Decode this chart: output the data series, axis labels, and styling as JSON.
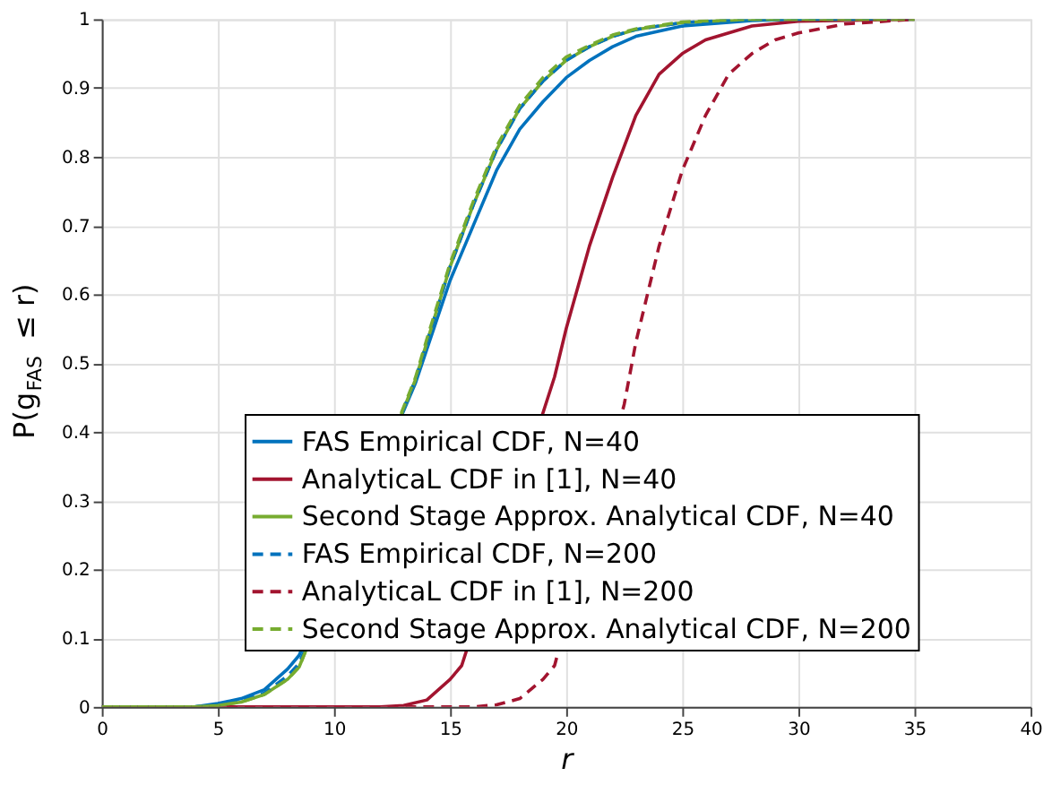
{
  "chart_data": {
    "type": "line",
    "xlabel": "r",
    "ylabel": "P(g$_{FAS}$ ≤ r)",
    "xlim": [
      0,
      40
    ],
    "ylim": [
      0,
      1
    ],
    "xticks": [
      0,
      5,
      10,
      15,
      20,
      25,
      30,
      35,
      40
    ],
    "yticks": [
      0,
      0.1,
      0.2,
      0.3,
      0.4,
      0.5,
      0.6,
      0.7,
      0.8,
      0.9,
      1
    ],
    "grid": true,
    "legend": "bottom right",
    "marker": "none",
    "series": [
      {
        "name": "FAS Empirical CDF, N=40",
        "color": "#0072bd",
        "line_style": "solid",
        "x": [
          0,
          4,
          5,
          6,
          7,
          7.5,
          8,
          8.5,
          13.5,
          14,
          15,
          16,
          17,
          18,
          19,
          20,
          21,
          22,
          23,
          25,
          28,
          30,
          35
        ],
        "values": [
          0,
          0,
          0.005,
          0.012,
          0.025,
          0.04,
          0.055,
          0.075,
          0.47,
          0.52,
          0.62,
          0.7,
          0.78,
          0.84,
          0.88,
          0.915,
          0.94,
          0.96,
          0.975,
          0.99,
          0.998,
          1,
          1
        ]
      },
      {
        "name": "AnalyticaL CDF in [1], N=40",
        "color": "#a2142f",
        "line_style": "solid",
        "x": [
          0,
          12,
          13,
          14,
          15,
          15.5,
          19.5,
          20,
          21,
          22,
          23,
          24,
          25,
          26,
          28,
          30,
          35
        ],
        "values": [
          0,
          0,
          0.002,
          0.01,
          0.04,
          0.06,
          0.48,
          0.55,
          0.67,
          0.77,
          0.86,
          0.92,
          0.95,
          0.97,
          0.99,
          0.997,
          1
        ]
      },
      {
        "name": "Second Stage Approx. Analytical CDF, N=40",
        "color": "#77ac30",
        "line_style": "solid",
        "x": [
          0,
          4,
          5,
          6,
          7,
          8,
          8.5,
          13.5,
          14,
          15,
          16,
          17,
          18,
          19,
          20,
          21,
          22,
          23,
          25,
          28,
          35
        ],
        "values": [
          0,
          0,
          0.002,
          0.007,
          0.018,
          0.04,
          0.058,
          0.475,
          0.53,
          0.64,
          0.73,
          0.81,
          0.87,
          0.91,
          0.94,
          0.96,
          0.975,
          0.985,
          0.995,
          1,
          1
        ]
      },
      {
        "name": "FAS Empirical CDF, N=200",
        "color": "#0072bd",
        "line_style": "dashed",
        "x": [
          0,
          4,
          5,
          6,
          7,
          8,
          8.5,
          13.5,
          14,
          15,
          16,
          17,
          18,
          19,
          20,
          21,
          22,
          23,
          25,
          28,
          35
        ],
        "values": [
          0,
          0,
          0.003,
          0.009,
          0.02,
          0.045,
          0.063,
          0.475,
          0.53,
          0.64,
          0.73,
          0.81,
          0.87,
          0.91,
          0.94,
          0.96,
          0.975,
          0.985,
          0.995,
          1,
          1
        ]
      },
      {
        "name": "AnalyticaL CDF in [1], N=200",
        "color": "#a2142f",
        "line_style": "dashed",
        "x": [
          0,
          16,
          17,
          18,
          19,
          19.5,
          22.5,
          23,
          24,
          25,
          26,
          27,
          28,
          29,
          30,
          32,
          35
        ],
        "values": [
          0,
          0,
          0.003,
          0.012,
          0.04,
          0.06,
          0.44,
          0.53,
          0.67,
          0.78,
          0.86,
          0.92,
          0.95,
          0.97,
          0.98,
          0.993,
          1
        ]
      },
      {
        "name": "Second Stage Approx. Analytical CDF, N=200",
        "color": "#77ac30",
        "line_style": "dashed",
        "x": [
          0,
          4,
          5,
          6,
          7,
          8,
          8.5,
          13.5,
          14,
          15,
          16,
          17,
          18,
          19,
          20,
          21,
          22,
          23,
          25,
          28,
          35
        ],
        "values": [
          0,
          0,
          0.002,
          0.007,
          0.018,
          0.04,
          0.058,
          0.478,
          0.535,
          0.645,
          0.735,
          0.815,
          0.875,
          0.915,
          0.945,
          0.962,
          0.977,
          0.986,
          0.996,
          1,
          1
        ]
      }
    ]
  }
}
